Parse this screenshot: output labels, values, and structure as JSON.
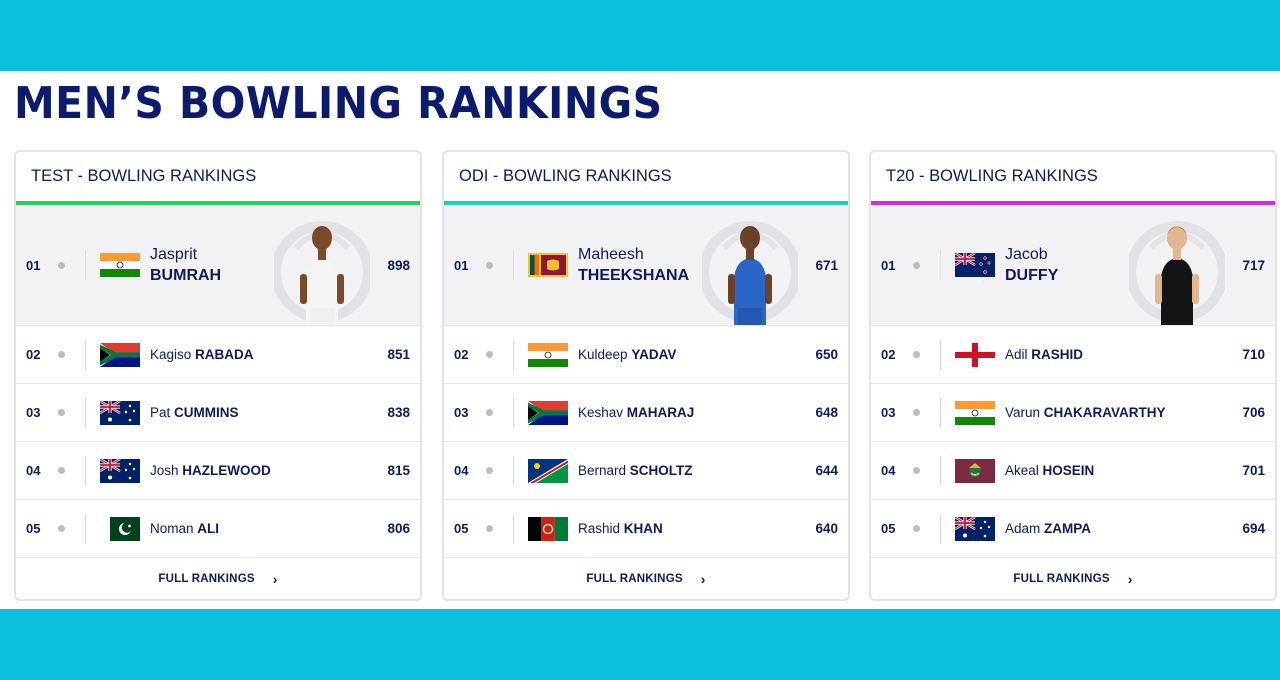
{
  "page": {
    "title": "MEN’S BOWLING RANKINGS"
  },
  "colors": {
    "band": "#0ac0de",
    "test_accent": "#27d05a",
    "odi_accent": "#19d0b8",
    "t20_accent": "#d92ad8",
    "navy": "#0d1b5e"
  },
  "cards": [
    {
      "header": "TEST - BOWLING RANKINGS",
      "accent": "#27d05a",
      "footer": "FULL RANKINGS",
      "rows": [
        {
          "rank": "01",
          "first": "Jasprit",
          "last": "BUMRAH",
          "points": "898",
          "flag": "india-flag",
          "photo": "player-photo-bumrah"
        },
        {
          "rank": "02",
          "first": "Kagiso",
          "last": "RABADA",
          "points": "851",
          "flag": "south-africa-flag"
        },
        {
          "rank": "03",
          "first": "Pat",
          "last": "CUMMINS",
          "points": "838",
          "flag": "australia-flag"
        },
        {
          "rank": "04",
          "first": "Josh",
          "last": "HAZLEWOOD",
          "points": "815",
          "flag": "australia-flag"
        },
        {
          "rank": "05",
          "first": "Noman",
          "last": "ALI",
          "points": "806",
          "flag": "pakistan-flag"
        }
      ]
    },
    {
      "header": "ODI - BOWLING RANKINGS",
      "accent": "#19d0b8",
      "footer": "FULL RANKINGS",
      "rows": [
        {
          "rank": "01",
          "first": "Maheesh",
          "last": "THEEKSHANA",
          "points": "671",
          "flag": "sri-lanka-flag",
          "photo": "player-photo-theekshana"
        },
        {
          "rank": "02",
          "first": "Kuldeep",
          "last": "YADAV",
          "points": "650",
          "flag": "india-flag"
        },
        {
          "rank": "03",
          "first": "Keshav",
          "last": "MAHARAJ",
          "points": "648",
          "flag": "south-africa-flag"
        },
        {
          "rank": "04",
          "first": "Bernard",
          "last": "SCHOLTZ",
          "points": "644",
          "flag": "namibia-flag"
        },
        {
          "rank": "05",
          "first": "Rashid",
          "last": "KHAN",
          "points": "640",
          "flag": "afghanistan-flag"
        }
      ]
    },
    {
      "header": "T20 - BOWLING RANKINGS",
      "accent": "#d92ad8",
      "footer": "FULL RANKINGS",
      "rows": [
        {
          "rank": "01",
          "first": "Jacob",
          "last": "DUFFY",
          "points": "717",
          "flag": "new-zealand-flag",
          "photo": "player-photo-duffy"
        },
        {
          "rank": "02",
          "first": "Adil",
          "last": "RASHID",
          "points": "710",
          "flag": "england-flag"
        },
        {
          "rank": "03",
          "first": "Varun",
          "last": "CHAKARAVARTHY",
          "points": "706",
          "flag": "india-flag"
        },
        {
          "rank": "04",
          "first": "Akeal",
          "last": "HOSEIN",
          "points": "701",
          "flag": "west-indies-flag"
        },
        {
          "rank": "05",
          "first": "Adam",
          "last": "ZAMPA",
          "points": "694",
          "flag": "australia-flag"
        }
      ]
    }
  ]
}
